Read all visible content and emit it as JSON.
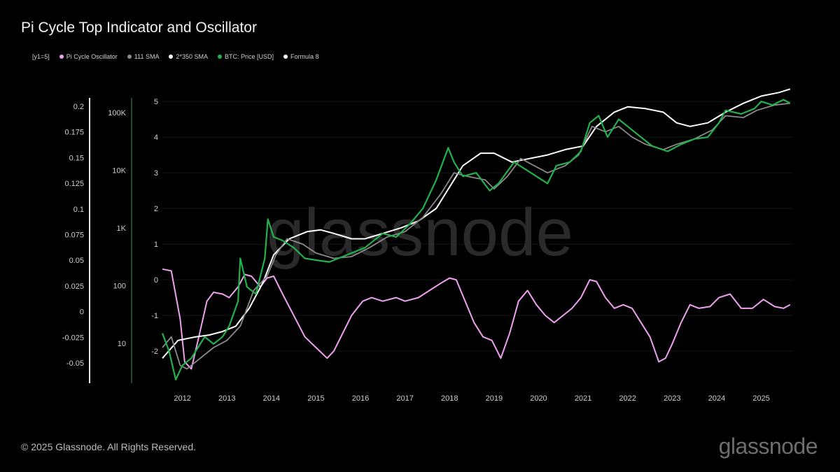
{
  "title": "Pi Cycle Top Indicator and Oscillator",
  "legend": [
    {
      "label": "[y1=5]",
      "color": ""
    },
    {
      "label": "Pi Cycle Oscillator",
      "color": "#f0a0f0"
    },
    {
      "label": "111 SMA",
      "color": "#8a8a8a"
    },
    {
      "label": "2*350 SMA",
      "color": "#ffffff"
    },
    {
      "label": "BTC: Price [USD]",
      "color": "#22b14c"
    },
    {
      "label": "Formula 8",
      "color": "#ffffff"
    }
  ],
  "footer": "© 2025 Glassnode. All Rights Reserved.",
  "brand": "glassnode",
  "watermark": "glassnode",
  "chart_data": {
    "type": "line",
    "title": "Pi Cycle Top Indicator and Oscillator",
    "axes": {
      "oscillator": {
        "ticks": [
          "0.2",
          "0.175",
          "0.15",
          "0.125",
          "0.1",
          "0.075",
          "0.05",
          "0.025",
          "0",
          "-0.025",
          "-0.05"
        ],
        "range": [
          -0.05,
          0.2
        ]
      },
      "price_log": {
        "ticks": [
          "100K",
          "10K",
          "1K",
          "100",
          "10"
        ],
        "scale": "log"
      },
      "formula8": {
        "ticks": [
          "5",
          "4",
          "3",
          "2",
          "1",
          "0",
          "-1",
          "-2"
        ],
        "range": [
          -2.9,
          5.1
        ]
      },
      "x": {
        "ticks": [
          "2012",
          "2013",
          "2014",
          "2015",
          "2016",
          "2017",
          "2018",
          "2019",
          "2020",
          "2021",
          "2022",
          "2023",
          "2024",
          "2025"
        ],
        "range": [
          2011.55,
          2025.7
        ]
      }
    },
    "series": [
      {
        "name": "Pi Cycle Oscillator",
        "color": "#f0a0f0",
        "points": [
          [
            2011.55,
            0.3
          ],
          [
            2011.75,
            0.25
          ],
          [
            2011.95,
            -1.1
          ],
          [
            2012.05,
            -2.3
          ],
          [
            2012.2,
            -2.5
          ],
          [
            2012.35,
            -1.7
          ],
          [
            2012.55,
            -0.6
          ],
          [
            2012.7,
            -0.35
          ],
          [
            2012.9,
            -0.4
          ],
          [
            2013.05,
            -0.5
          ],
          [
            2013.25,
            -0.2
          ],
          [
            2013.4,
            0.15
          ],
          [
            2013.55,
            0.1
          ],
          [
            2013.75,
            -0.2
          ],
          [
            2013.9,
            0.05
          ],
          [
            2014.05,
            0.1
          ],
          [
            2014.25,
            -0.4
          ],
          [
            2014.5,
            -1.0
          ],
          [
            2014.75,
            -1.6
          ],
          [
            2015.0,
            -1.9
          ],
          [
            2015.25,
            -2.2
          ],
          [
            2015.4,
            -2.0
          ],
          [
            2015.6,
            -1.5
          ],
          [
            2015.8,
            -1.0
          ],
          [
            2016.05,
            -0.6
          ],
          [
            2016.25,
            -0.5
          ],
          [
            2016.5,
            -0.6
          ],
          [
            2016.8,
            -0.5
          ],
          [
            2017.0,
            -0.6
          ],
          [
            2017.3,
            -0.5
          ],
          [
            2017.55,
            -0.3
          ],
          [
            2017.8,
            -0.1
          ],
          [
            2018.0,
            0.05
          ],
          [
            2018.15,
            0.0
          ],
          [
            2018.35,
            -0.6
          ],
          [
            2018.55,
            -1.2
          ],
          [
            2018.75,
            -1.6
          ],
          [
            2018.95,
            -1.7
          ],
          [
            2019.15,
            -2.2
          ],
          [
            2019.35,
            -1.5
          ],
          [
            2019.55,
            -0.6
          ],
          [
            2019.75,
            -0.3
          ],
          [
            2019.95,
            -0.7
          ],
          [
            2020.15,
            -1.0
          ],
          [
            2020.35,
            -1.2
          ],
          [
            2020.55,
            -1.0
          ],
          [
            2020.75,
            -0.8
          ],
          [
            2020.95,
            -0.5
          ],
          [
            2021.15,
            0.0
          ],
          [
            2021.3,
            -0.05
          ],
          [
            2021.5,
            -0.5
          ],
          [
            2021.7,
            -0.8
          ],
          [
            2021.9,
            -0.7
          ],
          [
            2022.1,
            -0.8
          ],
          [
            2022.3,
            -1.2
          ],
          [
            2022.5,
            -1.6
          ],
          [
            2022.7,
            -2.3
          ],
          [
            2022.85,
            -2.2
          ],
          [
            2023.0,
            -1.8
          ],
          [
            2023.2,
            -1.2
          ],
          [
            2023.4,
            -0.7
          ],
          [
            2023.6,
            -0.8
          ],
          [
            2023.85,
            -0.75
          ],
          [
            2024.05,
            -0.5
          ],
          [
            2024.3,
            -0.4
          ],
          [
            2024.55,
            -0.8
          ],
          [
            2024.8,
            -0.8
          ],
          [
            2025.05,
            -0.55
          ],
          [
            2025.3,
            -0.75
          ],
          [
            2025.5,
            -0.8
          ],
          [
            2025.65,
            -0.7
          ]
        ]
      },
      {
        "name": "2*350 SMA",
        "color": "#ffffff",
        "points": [
          [
            2011.55,
            -2.2
          ],
          [
            2011.9,
            -1.7
          ],
          [
            2012.3,
            -1.6
          ],
          [
            2012.6,
            -1.55
          ],
          [
            2012.9,
            -1.45
          ],
          [
            2013.2,
            -1.3
          ],
          [
            2013.5,
            -0.8
          ],
          [
            2013.8,
            -0.1
          ],
          [
            2014.05,
            0.7
          ],
          [
            2014.4,
            1.15
          ],
          [
            2014.8,
            1.35
          ],
          [
            2015.1,
            1.4
          ],
          [
            2015.4,
            1.3
          ],
          [
            2015.8,
            1.15
          ],
          [
            2016.1,
            1.15
          ],
          [
            2016.5,
            1.3
          ],
          [
            2016.9,
            1.45
          ],
          [
            2017.3,
            1.65
          ],
          [
            2017.7,
            2.0
          ],
          [
            2018.0,
            2.6
          ],
          [
            2018.3,
            3.2
          ],
          [
            2018.7,
            3.55
          ],
          [
            2019.0,
            3.55
          ],
          [
            2019.4,
            3.3
          ],
          [
            2019.8,
            3.4
          ],
          [
            2020.2,
            3.5
          ],
          [
            2020.6,
            3.65
          ],
          [
            2021.0,
            3.75
          ],
          [
            2021.3,
            4.3
          ],
          [
            2021.7,
            4.7
          ],
          [
            2022.0,
            4.85
          ],
          [
            2022.4,
            4.8
          ],
          [
            2022.8,
            4.7
          ],
          [
            2023.1,
            4.4
          ],
          [
            2023.4,
            4.3
          ],
          [
            2023.8,
            4.4
          ],
          [
            2024.2,
            4.7
          ],
          [
            2024.6,
            4.95
          ],
          [
            2025.0,
            5.15
          ],
          [
            2025.4,
            5.25
          ],
          [
            2025.65,
            5.35
          ]
        ]
      },
      {
        "name": "111 SMA",
        "color": "#8a8a8a",
        "points": [
          [
            2011.55,
            -1.9
          ],
          [
            2011.75,
            -1.6
          ],
          [
            2011.95,
            -2.4
          ],
          [
            2012.1,
            -2.5
          ],
          [
            2012.4,
            -2.2
          ],
          [
            2012.7,
            -1.9
          ],
          [
            2013.0,
            -1.7
          ],
          [
            2013.3,
            -1.3
          ],
          [
            2013.6,
            -0.3
          ],
          [
            2013.9,
            0.1
          ],
          [
            2014.1,
            0.7
          ],
          [
            2014.35,
            1.15
          ],
          [
            2014.7,
            1.0
          ],
          [
            2015.0,
            0.75
          ],
          [
            2015.4,
            0.6
          ],
          [
            2015.8,
            0.65
          ],
          [
            2016.2,
            0.9
          ],
          [
            2016.6,
            1.2
          ],
          [
            2017.0,
            1.35
          ],
          [
            2017.4,
            1.75
          ],
          [
            2017.8,
            2.4
          ],
          [
            2018.1,
            3.0
          ],
          [
            2018.4,
            2.9
          ],
          [
            2018.8,
            2.8
          ],
          [
            2019.0,
            2.55
          ],
          [
            2019.3,
            2.9
          ],
          [
            2019.6,
            3.4
          ],
          [
            2019.9,
            3.2
          ],
          [
            2020.2,
            3.0
          ],
          [
            2020.6,
            3.2
          ],
          [
            2020.9,
            3.5
          ],
          [
            2021.2,
            4.3
          ],
          [
            2021.5,
            4.15
          ],
          [
            2021.8,
            4.3
          ],
          [
            2022.1,
            4.0
          ],
          [
            2022.4,
            3.8
          ],
          [
            2022.8,
            3.65
          ],
          [
            2023.1,
            3.8
          ],
          [
            2023.5,
            3.95
          ],
          [
            2023.9,
            4.2
          ],
          [
            2024.2,
            4.6
          ],
          [
            2024.6,
            4.55
          ],
          [
            2024.9,
            4.75
          ],
          [
            2025.3,
            4.9
          ],
          [
            2025.65,
            4.95
          ]
        ]
      },
      {
        "name": "BTC: Price [USD]",
        "color": "#22b14c",
        "points": [
          [
            2011.55,
            -1.5
          ],
          [
            2011.7,
            -2.0
          ],
          [
            2011.85,
            -2.8
          ],
          [
            2012.0,
            -2.4
          ],
          [
            2012.2,
            -2.2
          ],
          [
            2012.35,
            -1.9
          ],
          [
            2012.5,
            -1.6
          ],
          [
            2012.7,
            -1.8
          ],
          [
            2012.9,
            -1.6
          ],
          [
            2013.05,
            -1.3
          ],
          [
            2013.25,
            -0.6
          ],
          [
            2013.3,
            0.6
          ],
          [
            2013.45,
            -0.2
          ],
          [
            2013.65,
            -0.4
          ],
          [
            2013.85,
            0.6
          ],
          [
            2013.92,
            1.7
          ],
          [
            2014.05,
            1.2
          ],
          [
            2014.25,
            1.1
          ],
          [
            2014.5,
            0.9
          ],
          [
            2014.75,
            0.6
          ],
          [
            2015.0,
            0.55
          ],
          [
            2015.3,
            0.5
          ],
          [
            2015.6,
            0.65
          ],
          [
            2015.9,
            0.8
          ],
          [
            2016.1,
            0.9
          ],
          [
            2016.5,
            1.3
          ],
          [
            2016.8,
            1.2
          ],
          [
            2017.1,
            1.55
          ],
          [
            2017.4,
            2.0
          ],
          [
            2017.7,
            2.8
          ],
          [
            2017.97,
            3.7
          ],
          [
            2018.1,
            3.3
          ],
          [
            2018.3,
            2.9
          ],
          [
            2018.6,
            3.0
          ],
          [
            2018.9,
            2.5
          ],
          [
            2019.1,
            2.7
          ],
          [
            2019.45,
            3.3
          ],
          [
            2019.7,
            3.1
          ],
          [
            2019.95,
            2.9
          ],
          [
            2020.2,
            2.7
          ],
          [
            2020.4,
            3.2
          ],
          [
            2020.7,
            3.3
          ],
          [
            2020.95,
            3.6
          ],
          [
            2021.15,
            4.4
          ],
          [
            2021.35,
            4.6
          ],
          [
            2021.55,
            4.0
          ],
          [
            2021.8,
            4.5
          ],
          [
            2022.0,
            4.3
          ],
          [
            2022.3,
            4.0
          ],
          [
            2022.55,
            3.75
          ],
          [
            2022.9,
            3.6
          ],
          [
            2023.2,
            3.8
          ],
          [
            2023.5,
            3.95
          ],
          [
            2023.8,
            4.0
          ],
          [
            2024.05,
            4.4
          ],
          [
            2024.2,
            4.75
          ],
          [
            2024.55,
            4.65
          ],
          [
            2024.85,
            4.8
          ],
          [
            2025.0,
            5.0
          ],
          [
            2025.25,
            4.9
          ],
          [
            2025.5,
            5.05
          ],
          [
            2025.65,
            4.95
          ]
        ]
      }
    ]
  }
}
